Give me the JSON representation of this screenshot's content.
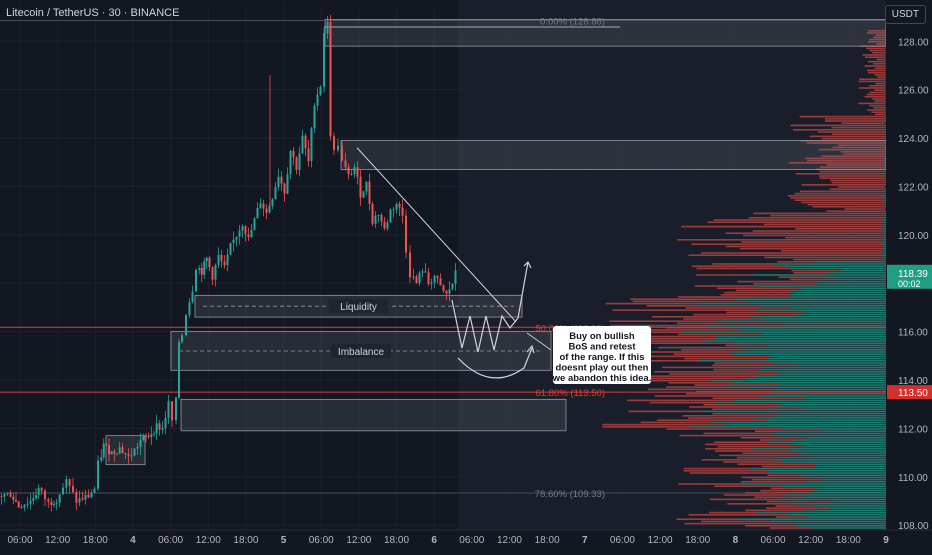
{
  "header": {
    "title": "Litecoin / TetherUS · 30 · BINANCE",
    "currency_button": "USDT"
  },
  "colors": {
    "background": "#131722",
    "up": "#26a69a",
    "down": "#ef5350",
    "red_line": "#e53935",
    "axis_text": "#b2b5be",
    "fib_text": "#787b86"
  },
  "chart_data": {
    "type": "candlestick",
    "symbol": "LTCUSDT",
    "interval": "30",
    "ylim": [
      107.8,
      129.5
    ],
    "yticks": [
      108,
      110,
      112,
      114,
      116,
      118,
      120,
      122,
      124,
      126,
      128
    ],
    "ytick_labels": [
      "108.00",
      "110.00",
      "112.00",
      "114.00",
      "116.00",
      "118.00",
      "120.00",
      "122.00",
      "124.00",
      "126.00",
      "128.00"
    ],
    "xticks": [
      "06:00",
      "12:00",
      "18:00",
      "4",
      "06:00",
      "12:00",
      "18:00",
      "5",
      "06:00",
      "12:00",
      "18:00",
      "6",
      "06:00",
      "12:00",
      "18:00",
      "7",
      "06:00",
      "12:00",
      "18:00",
      "8",
      "06:00",
      "12:00",
      "18:00",
      "9"
    ],
    "last_price": "118.39",
    "countdown": "00:02",
    "price_marker": "113.50",
    "price_path": [
      [
        0,
        109.2
      ],
      [
        12,
        109.3
      ],
      [
        20,
        108.8
      ],
      [
        32,
        109.0
      ],
      [
        40,
        109.5
      ],
      [
        50,
        108.9
      ],
      [
        58,
        109.1
      ],
      [
        68,
        109.8
      ],
      [
        78,
        109.0
      ],
      [
        90,
        109.2
      ],
      [
        96,
        109.5
      ],
      [
        100,
        110.5
      ],
      [
        105,
        111.3
      ],
      [
        113,
        111.0
      ],
      [
        121,
        111.2
      ],
      [
        130,
        110.8
      ],
      [
        136,
        111.1
      ],
      [
        142,
        111.5
      ],
      [
        150,
        111.7
      ],
      [
        158,
        112.1
      ],
      [
        164,
        112.0
      ],
      [
        170,
        113.0
      ],
      [
        174,
        112.3
      ],
      [
        178,
        113.1
      ],
      [
        180,
        115.6
      ],
      [
        184,
        115.9
      ],
      [
        188,
        116.8
      ],
      [
        194,
        117.8
      ],
      [
        198,
        118.7
      ],
      [
        203,
        118.5
      ],
      [
        208,
        119.0
      ],
      [
        214,
        118.3
      ],
      [
        220,
        119.1
      ],
      [
        226,
        118.6
      ],
      [
        232,
        119.5
      ],
      [
        238,
        120.0
      ],
      [
        244,
        120.5
      ],
      [
        250,
        119.8
      ],
      [
        256,
        120.6
      ],
      [
        262,
        121.4
      ],
      [
        268,
        120.9
      ],
      [
        274,
        121.6
      ],
      [
        280,
        122.5
      ],
      [
        286,
        121.8
      ],
      [
        292,
        123.5
      ],
      [
        298,
        122.8
      ],
      [
        304,
        124.0
      ],
      [
        310,
        123.0
      ],
      [
        316,
        125.5
      ],
      [
        322,
        126.2
      ],
      [
        326,
        128.4
      ],
      [
        329,
        128.7
      ],
      [
        332,
        124.2
      ],
      [
        336,
        123.4
      ],
      [
        340,
        123.8
      ],
      [
        344,
        123.0
      ],
      [
        350,
        122.4
      ],
      [
        356,
        122.8
      ],
      [
        362,
        121.7
      ],
      [
        368,
        122.1
      ],
      [
        374,
        120.6
      ],
      [
        380,
        120.9
      ],
      [
        386,
        120.2
      ],
      [
        392,
        121.0
      ],
      [
        398,
        121.3
      ],
      [
        404,
        120.8
      ],
      [
        408,
        119.4
      ],
      [
        412,
        118.4
      ],
      [
        418,
        118.0
      ],
      [
        424,
        118.6
      ],
      [
        430,
        118.0
      ],
      [
        436,
        118.3
      ],
      [
        442,
        117.8
      ],
      [
        448,
        117.5
      ],
      [
        454,
        118.0
      ],
      [
        457,
        118.39
      ]
    ],
    "annotations": {
      "fib_levels": [
        {
          "label": "0.00% (128.86)",
          "price": 128.86
        },
        {
          "label": "50.00% (116.18)",
          "price": 116.18
        },
        {
          "label": "61.80% (113.50)",
          "price": 113.5
        },
        {
          "label": "78.60% (109.33)",
          "price": 109.33
        }
      ],
      "zones": [
        {
          "label": "Liquidity",
          "top": 117.5,
          "bottom": 116.6
        },
        {
          "label": "Imbalance",
          "top": 116.0,
          "bottom": 114.4
        },
        {
          "label": "",
          "top": 128.9,
          "bottom": 127.8
        },
        {
          "label": "",
          "top": 123.9,
          "bottom": 122.7
        },
        {
          "label": "",
          "top": 113.2,
          "bottom": 111.9
        },
        {
          "label": "",
          "top": 111.7,
          "bottom": 110.5
        }
      ],
      "note": "Buy on bullish\nBoS and retest\nof the range. If this\ndoesnt play out then\nwe abandon this idea."
    }
  }
}
